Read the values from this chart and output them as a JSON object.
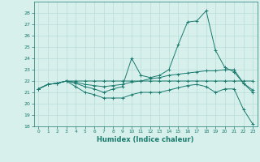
{
  "xlabel": "Humidex (Indice chaleur)",
  "x": [
    0,
    1,
    2,
    3,
    4,
    5,
    6,
    7,
    8,
    9,
    10,
    11,
    12,
    13,
    14,
    15,
    16,
    17,
    18,
    19,
    20,
    21,
    22,
    23
  ],
  "lines": [
    [
      21.3,
      21.7,
      21.8,
      22.0,
      21.8,
      21.5,
      21.3,
      21.0,
      21.3,
      21.5,
      24.0,
      22.5,
      22.3,
      22.5,
      23.0,
      25.2,
      27.2,
      27.3,
      28.2,
      24.7,
      23.2,
      22.8,
      21.8,
      21.0
    ],
    [
      21.3,
      21.7,
      21.8,
      22.0,
      22.0,
      22.0,
      22.0,
      22.0,
      22.0,
      22.0,
      22.0,
      22.0,
      22.0,
      22.0,
      22.0,
      22.0,
      22.0,
      22.0,
      22.0,
      22.0,
      22.0,
      22.0,
      22.0,
      22.0
    ],
    [
      21.3,
      21.7,
      21.8,
      22.0,
      21.9,
      21.7,
      21.6,
      21.5,
      21.6,
      21.7,
      21.9,
      22.0,
      22.2,
      22.3,
      22.5,
      22.6,
      22.7,
      22.8,
      22.9,
      22.9,
      23.0,
      23.0,
      21.8,
      21.2
    ],
    [
      21.3,
      21.7,
      21.8,
      22.0,
      21.5,
      21.0,
      20.8,
      20.5,
      20.5,
      20.5,
      20.8,
      21.0,
      21.0,
      21.0,
      21.2,
      21.4,
      21.6,
      21.7,
      21.5,
      21.0,
      21.3,
      21.3,
      19.5,
      18.2
    ]
  ],
  "line_color": "#1a7a6e",
  "bg_color": "#d8f0ec",
  "grid_color": "#b8dcd8",
  "ylim": [
    18,
    29
  ],
  "yticks": [
    18,
    19,
    20,
    21,
    22,
    23,
    24,
    25,
    26,
    27,
    28
  ],
  "marker": "+"
}
